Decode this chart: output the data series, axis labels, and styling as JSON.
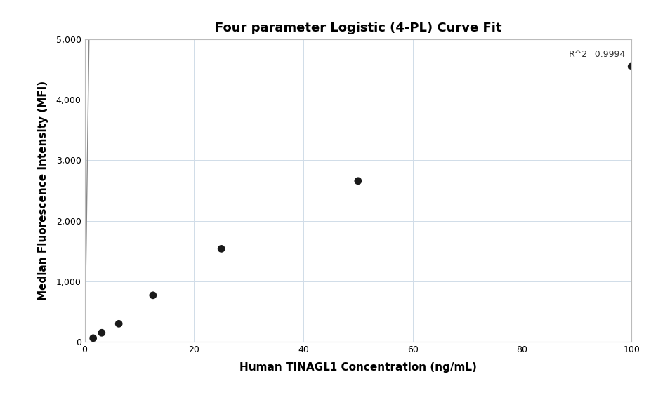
{
  "title": "Four parameter Logistic (4-PL) Curve Fit",
  "xlabel": "Human TINAGL1 Concentration (ng/mL)",
  "ylabel": "Median Fluorescence Intensity (MFI)",
  "scatter_x": [
    1.5625,
    3.125,
    6.25,
    12.5,
    25.0,
    50.0,
    100.0
  ],
  "scatter_y": [
    62,
    150,
    300,
    770,
    1540,
    2660,
    4550
  ],
  "xlim": [
    0,
    100
  ],
  "ylim": [
    0,
    5000
  ],
  "xticks": [
    0,
    20,
    40,
    60,
    80,
    100
  ],
  "yticks": [
    0,
    1000,
    2000,
    3000,
    4000,
    5000
  ],
  "ytick_labels": [
    "0",
    "1,000",
    "2,000",
    "3,000",
    "4,000",
    "5,000"
  ],
  "r_squared_text": "R^2=0.9994",
  "dot_color": "#1a1a1a",
  "dot_size": 60,
  "line_color": "#888888",
  "line_width": 1.0,
  "grid_color": "#d0dce8",
  "bg_color": "#ffffff",
  "title_fontsize": 13,
  "label_fontsize": 11,
  "tick_fontsize": 9,
  "annotation_fontsize": 9
}
